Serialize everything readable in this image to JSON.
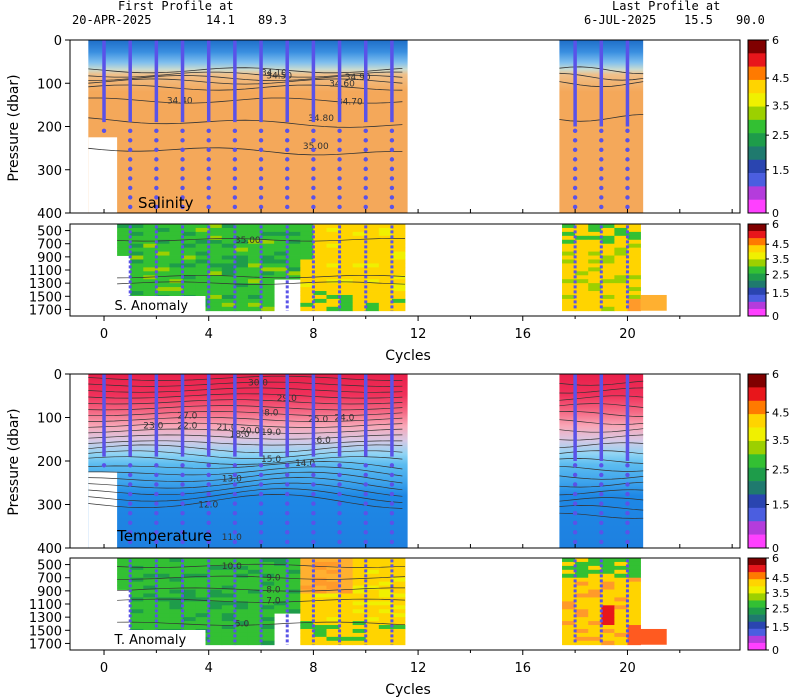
{
  "header": {
    "first_label": "First Profile at",
    "first_date": "20-APR-2025",
    "first_v1": "14.1",
    "first_v2": "89.3",
    "last_label": "Last Profile at",
    "last_date": "6-JUL-2025",
    "last_v1": "15.5",
    "last_v2": "90.0"
  },
  "colorbar": {
    "ticks": [
      "6",
      "4.5",
      "3.5",
      "2.5",
      "1.5",
      "0"
    ],
    "colors": [
      "#800000",
      "#e8161b",
      "#ff7a00",
      "#ffd400",
      "#f0f000",
      "#9cd000",
      "#33c033",
      "#1e9c4a",
      "#1f7a6e",
      "#2a45b0",
      "#4b5ee0",
      "#b43cdc",
      "#ff40ff"
    ]
  },
  "chart_data": [
    {
      "type": "heatmap",
      "panel": "salinity",
      "label": "Salinity",
      "ylabel": "Pressure (dbar)",
      "yticks": [
        "0",
        "100",
        "200",
        "300",
        "400"
      ],
      "ylim": [
        0,
        400
      ],
      "contour_labels": [
        "34.40",
        "34.50",
        "34.60",
        "34.70",
        "34.80",
        "34.90",
        "35.00",
        "34.10"
      ]
    },
    {
      "type": "heatmap",
      "panel": "salinity_anomaly",
      "label": "S. Anomaly",
      "yticks": [
        "500",
        "700",
        "900",
        "1100",
        "1300",
        "1500",
        "1700"
      ],
      "ylim": [
        400,
        1800
      ],
      "contour_labels": [
        "35.00"
      ],
      "xticks": [
        "0",
        "4",
        "8",
        "12",
        "16",
        "20"
      ],
      "xlabel": "Cycles"
    },
    {
      "type": "heatmap",
      "panel": "temperature",
      "label": "Temperature",
      "ylabel": "Pressure (dbar)",
      "yticks": [
        "0",
        "100",
        "200",
        "300",
        "400"
      ],
      "ylim": [
        0,
        400
      ],
      "contour_labels": [
        "30.0",
        "29.0",
        "28.0",
        "27.0",
        "25.0",
        "24.0",
        "23.0",
        "22.0",
        "21.0",
        "20.0",
        "19.0",
        "18.0",
        "16.0",
        "15.0",
        "14.0",
        "13.0",
        "12.0",
        "11.0"
      ]
    },
    {
      "type": "heatmap",
      "panel": "temperature_anomaly",
      "label": "T. Anomaly",
      "yticks": [
        "500",
        "700",
        "900",
        "1100",
        "1300",
        "1500",
        "1700"
      ],
      "ylim": [
        400,
        1800
      ],
      "contour_labels": [
        "10.0",
        "9.0",
        "8.0",
        "7.0",
        "5.0"
      ],
      "xticks": [
        "0",
        "4",
        "8",
        "12",
        "16",
        "20"
      ],
      "xlabel": "Cycles"
    }
  ],
  "xlim": [
    -1.3,
    24.3
  ],
  "profile_cycles_a": [
    0,
    1,
    2,
    3,
    4,
    5,
    6,
    7,
    8,
    9,
    10,
    11
  ],
  "profile_cycles_b": [
    18,
    19,
    20
  ]
}
